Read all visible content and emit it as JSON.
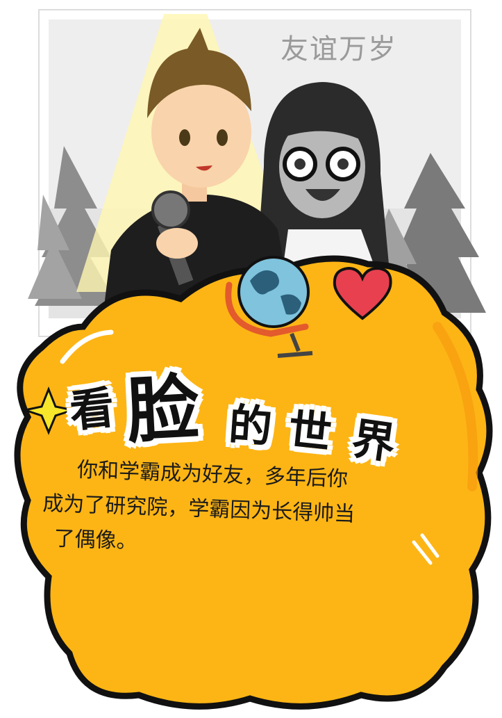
{
  "photo": {
    "caption": "友谊万岁"
  },
  "title": {
    "part1": "看",
    "part2": "脸",
    "part3": "的",
    "part4": "世",
    "part5": "界"
  },
  "story": {
    "line1": "你和学霸成为好友，多年后你",
    "line2": "成为了研究院，学霸因为长得帅当",
    "line3": "了偶像。"
  },
  "colors": {
    "cloud": "#FDB515",
    "outline": "#111111",
    "heart": "#E8404F",
    "globe": "#7FC3DD",
    "sparkle": "#F7E62A"
  },
  "icons": [
    "globe-icon",
    "heart-icon",
    "sparkle-icon",
    "microphone-icon"
  ]
}
